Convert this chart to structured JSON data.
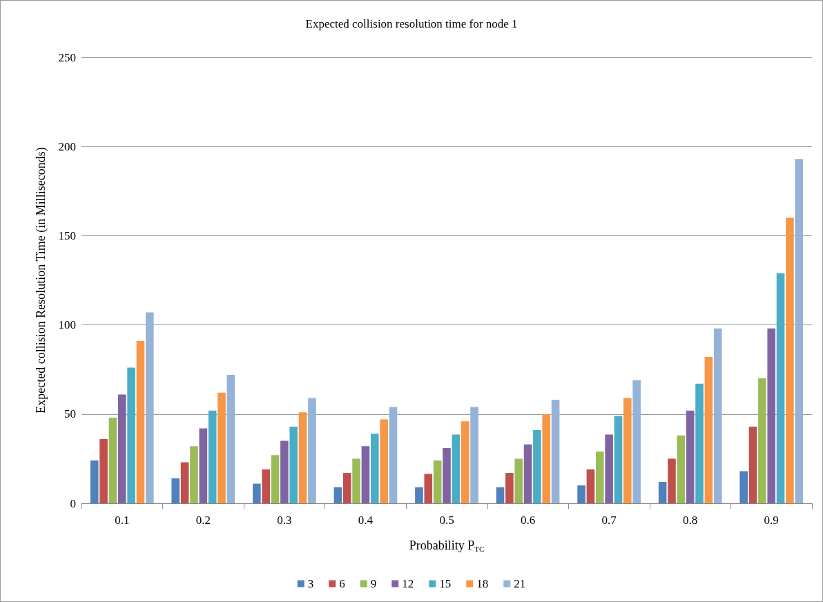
{
  "chart_data": {
    "type": "bar",
    "title": "Expected collision resolution time for node 1",
    "xlabel": "Probability P$_{TC}$",
    "ylabel": "Expected collision Resolution Time (in Milliseconds)",
    "categories": [
      "0.1",
      "0.2",
      "0.3",
      "0.4",
      "0.5",
      "0.6",
      "0.7",
      "0.8",
      "0.9"
    ],
    "series": [
      {
        "name": "3",
        "color": "#4f81bd",
        "values": [
          24,
          14,
          11,
          9,
          9,
          9,
          10,
          12,
          18
        ]
      },
      {
        "name": "6",
        "color": "#c0504d",
        "values": [
          36,
          23,
          19,
          17,
          16.5,
          17,
          19,
          25,
          43
        ]
      },
      {
        "name": "9",
        "color": "#9bbb59",
        "values": [
          48,
          32,
          27,
          25,
          24,
          25,
          29,
          38,
          70
        ]
      },
      {
        "name": "12",
        "color": "#8064a2",
        "values": [
          61,
          42,
          35,
          32,
          31,
          33,
          38.5,
          52,
          98
        ]
      },
      {
        "name": "15",
        "color": "#4bacc6",
        "values": [
          76,
          52,
          43,
          39,
          38.5,
          41,
          49,
          67,
          129
        ]
      },
      {
        "name": "18",
        "color": "#f79646",
        "values": [
          91,
          62,
          51,
          47,
          46,
          50,
          59,
          82,
          160
        ]
      },
      {
        "name": "21",
        "color": "#95b3d7",
        "values": [
          107,
          72,
          59,
          54,
          54,
          58,
          69,
          98,
          193
        ]
      }
    ],
    "ylim": [
      0,
      250
    ],
    "yticks": [
      0,
      50,
      100,
      150,
      200,
      250
    ],
    "grid": "y",
    "legend": "bottom"
  }
}
